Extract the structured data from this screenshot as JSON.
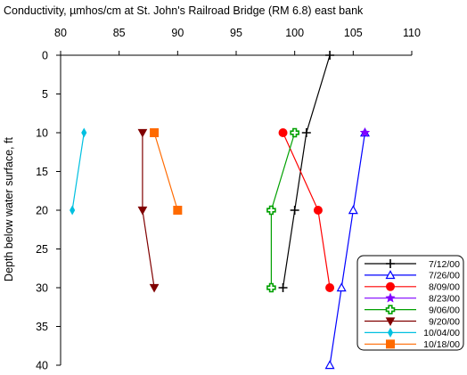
{
  "chart_data": {
    "type": "line",
    "title": "Conductivity, µmhos/cm at St. John's Railroad Bridge (RM 6.8) east bank",
    "xlabel": "",
    "ylabel": "Depth below water surface, ft",
    "xlim": [
      80,
      110
    ],
    "ylim": [
      0,
      40
    ],
    "y_inverted": true,
    "x_axis_position": "top",
    "x_ticks": [
      80,
      85,
      90,
      95,
      100,
      105,
      110
    ],
    "y_ticks": [
      0,
      5,
      10,
      15,
      20,
      25,
      30,
      35,
      40
    ],
    "grid": false,
    "legend_position": "bottom-right",
    "series": [
      {
        "name": "7/12/00",
        "color": "#000000",
        "marker": "plus",
        "points": [
          {
            "x": 103,
            "y": 0
          },
          {
            "x": 101,
            "y": 10
          },
          {
            "x": 100,
            "y": 20
          },
          {
            "x": 99,
            "y": 30
          }
        ]
      },
      {
        "name": "7/26/00",
        "color": "#0000ff",
        "marker": "triangle-up-open",
        "points": [
          {
            "x": 106,
            "y": 10
          },
          {
            "x": 105,
            "y": 20
          },
          {
            "x": 104,
            "y": 30
          },
          {
            "x": 103,
            "y": 40
          }
        ]
      },
      {
        "name": "8/09/00",
        "color": "#ff0000",
        "marker": "circle",
        "points": [
          {
            "x": 99,
            "y": 10
          },
          {
            "x": 102,
            "y": 20
          },
          {
            "x": 103,
            "y": 30
          }
        ]
      },
      {
        "name": "8/23/00",
        "color": "#8000ff",
        "marker": "star",
        "points": [
          {
            "x": 106,
            "y": 10
          }
        ]
      },
      {
        "name": "9/06/00",
        "color": "#00a000",
        "marker": "cross-open",
        "points": [
          {
            "x": 100,
            "y": 10
          },
          {
            "x": 98,
            "y": 20
          },
          {
            "x": 98,
            "y": 30
          }
        ]
      },
      {
        "name": "9/20/00",
        "color": "#800000",
        "marker": "triangle-down",
        "points": [
          {
            "x": 87,
            "y": 10
          },
          {
            "x": 87,
            "y": 20
          },
          {
            "x": 88,
            "y": 30
          }
        ]
      },
      {
        "name": "10/04/00",
        "color": "#00c0e0",
        "marker": "diamond",
        "points": [
          {
            "x": 82,
            "y": 10
          },
          {
            "x": 81,
            "y": 20
          }
        ]
      },
      {
        "name": "10/18/00",
        "color": "#ff6a00",
        "marker": "square",
        "points": [
          {
            "x": 88,
            "y": 10
          },
          {
            "x": 90,
            "y": 20
          }
        ]
      }
    ]
  }
}
